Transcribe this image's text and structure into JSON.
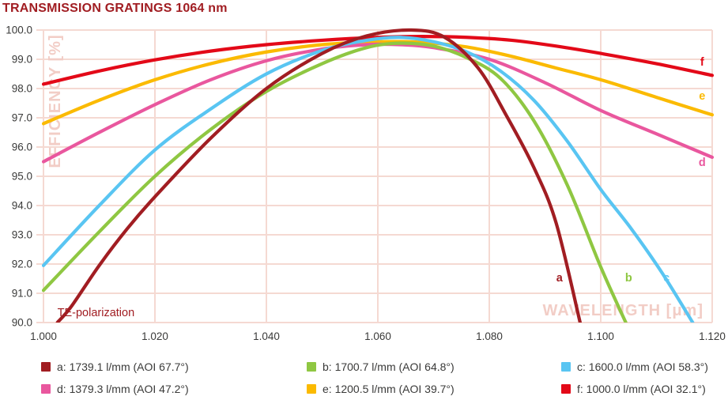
{
  "title": "TRANSMISSION GRATINGS 1064 nm",
  "colors": {
    "title": "#A11D22",
    "grid": "#F5D9D2",
    "watermark": "#F2CDC6",
    "tick_text": "#3A3A39",
    "background": "#FFFFFF"
  },
  "chart_data": {
    "type": "line",
    "title": "TRANSMISSION GRATINGS 1064 nm",
    "xlabel": "WAVELENGTH [μm]",
    "ylabel": "EFFICIENCY [%]",
    "annotation": {
      "text": "TE-polarization",
      "x": 1.0025,
      "y": 90.35,
      "color": "#A11D22"
    },
    "xlim": [
      1.0,
      1.12
    ],
    "ylim": [
      90.0,
      100.0
    ],
    "grid": true,
    "legend_position": "bottom",
    "x_ticks": [
      1.0,
      1.02,
      1.04,
      1.06,
      1.08,
      1.1,
      1.12
    ],
    "x_tick_labels": [
      "1.000",
      "1.020",
      "1.040",
      "1.060",
      "1.080",
      "1.100",
      "1.120"
    ],
    "y_ticks": [
      90,
      91,
      92,
      93,
      94,
      95,
      96,
      97,
      98,
      99,
      100
    ],
    "y_tick_labels": [
      "90.0",
      "91.0",
      "92.0",
      "93.0",
      "94.0",
      "95.0",
      "96.0",
      "97.0",
      "98.0",
      "99.0",
      "100.0"
    ],
    "series": [
      {
        "id": "a",
        "legend": "a: 1739.1 l/mm (AOI 67.7°)",
        "color": "#A11D22",
        "curve_label": {
          "text": "a",
          "x": 1.0926,
          "y": 91.4
        },
        "points": [
          [
            1.0025,
            90.0
          ],
          [
            1.005,
            90.55
          ],
          [
            1.01,
            91.95
          ],
          [
            1.015,
            93.2
          ],
          [
            1.02,
            94.3
          ],
          [
            1.03,
            96.3
          ],
          [
            1.04,
            98.0
          ],
          [
            1.05,
            99.2
          ],
          [
            1.058,
            99.8
          ],
          [
            1.066,
            100.0
          ],
          [
            1.072,
            99.75
          ],
          [
            1.078,
            98.7
          ],
          [
            1.083,
            97.1
          ],
          [
            1.088,
            95.3
          ],
          [
            1.092,
            93.4
          ],
          [
            1.0963,
            90.0
          ]
        ]
      },
      {
        "id": "b",
        "legend": "b: 1700.7 l/mm (AOI 64.8°)",
        "color": "#8FC742",
        "curve_label": {
          "text": "b",
          "x": 1.105,
          "y": 91.4
        },
        "points": [
          [
            1.0,
            91.1
          ],
          [
            1.01,
            93.1
          ],
          [
            1.02,
            95.0
          ],
          [
            1.03,
            96.6
          ],
          [
            1.04,
            97.9
          ],
          [
            1.05,
            98.85
          ],
          [
            1.058,
            99.4
          ],
          [
            1.064,
            99.55
          ],
          [
            1.07,
            99.45
          ],
          [
            1.076,
            99.05
          ],
          [
            1.082,
            98.35
          ],
          [
            1.088,
            96.9
          ],
          [
            1.094,
            94.7
          ],
          [
            1.1,
            91.9
          ],
          [
            1.1045,
            90.0
          ]
        ]
      },
      {
        "id": "c",
        "legend": "c: 1600.0 l/mm (AOI 58.3°)",
        "color": "#59C5F2",
        "curve_label": {
          "text": "c",
          "x": 1.1118,
          "y": 91.4
        },
        "points": [
          [
            1.0,
            91.95
          ],
          [
            1.01,
            94.0
          ],
          [
            1.02,
            95.9
          ],
          [
            1.03,
            97.3
          ],
          [
            1.04,
            98.5
          ],
          [
            1.05,
            99.3
          ],
          [
            1.058,
            99.65
          ],
          [
            1.064,
            99.75
          ],
          [
            1.07,
            99.6
          ],
          [
            1.076,
            99.25
          ],
          [
            1.082,
            98.6
          ],
          [
            1.088,
            97.6
          ],
          [
            1.094,
            96.2
          ],
          [
            1.1,
            94.55
          ],
          [
            1.1055,
            93.2
          ],
          [
            1.111,
            91.7
          ],
          [
            1.1165,
            90.0
          ]
        ]
      },
      {
        "id": "d",
        "legend": "d: 1379.3 l/mm (AOI 47.2°)",
        "color": "#E9579E",
        "curve_label": {
          "text": "d",
          "x": 1.1182,
          "y": 95.35
        },
        "points": [
          [
            1.0,
            95.5
          ],
          [
            1.01,
            96.5
          ],
          [
            1.02,
            97.45
          ],
          [
            1.03,
            98.3
          ],
          [
            1.04,
            98.95
          ],
          [
            1.05,
            99.35
          ],
          [
            1.058,
            99.5
          ],
          [
            1.064,
            99.5
          ],
          [
            1.07,
            99.4
          ],
          [
            1.08,
            99.0
          ],
          [
            1.09,
            98.2
          ],
          [
            1.1,
            97.25
          ],
          [
            1.11,
            96.45
          ],
          [
            1.12,
            95.65
          ]
        ]
      },
      {
        "id": "e",
        "legend": "e: 1200.5 l/mm (AOI 39.7°)",
        "color": "#FBBA00",
        "curve_label": {
          "text": "e",
          "x": 1.1182,
          "y": 97.62
        },
        "points": [
          [
            1.0,
            96.8
          ],
          [
            1.01,
            97.6
          ],
          [
            1.02,
            98.3
          ],
          [
            1.03,
            98.85
          ],
          [
            1.04,
            99.25
          ],
          [
            1.05,
            99.5
          ],
          [
            1.06,
            99.6
          ],
          [
            1.068,
            99.58
          ],
          [
            1.076,
            99.42
          ],
          [
            1.084,
            99.1
          ],
          [
            1.092,
            98.7
          ],
          [
            1.1,
            98.3
          ],
          [
            1.11,
            97.7
          ],
          [
            1.12,
            97.1
          ]
        ]
      },
      {
        "id": "f",
        "legend": "f: 1000.0 l/mm (AOI 32.1°)",
        "color": "#E30918",
        "curve_label": {
          "text": "f",
          "x": 1.1182,
          "y": 98.78
        },
        "points": [
          [
            1.0,
            98.15
          ],
          [
            1.01,
            98.6
          ],
          [
            1.02,
            98.98
          ],
          [
            1.03,
            99.28
          ],
          [
            1.04,
            99.5
          ],
          [
            1.05,
            99.65
          ],
          [
            1.06,
            99.75
          ],
          [
            1.068,
            99.78
          ],
          [
            1.076,
            99.75
          ],
          [
            1.084,
            99.65
          ],
          [
            1.092,
            99.45
          ],
          [
            1.1,
            99.2
          ],
          [
            1.11,
            98.85
          ],
          [
            1.12,
            98.45
          ]
        ]
      }
    ]
  }
}
